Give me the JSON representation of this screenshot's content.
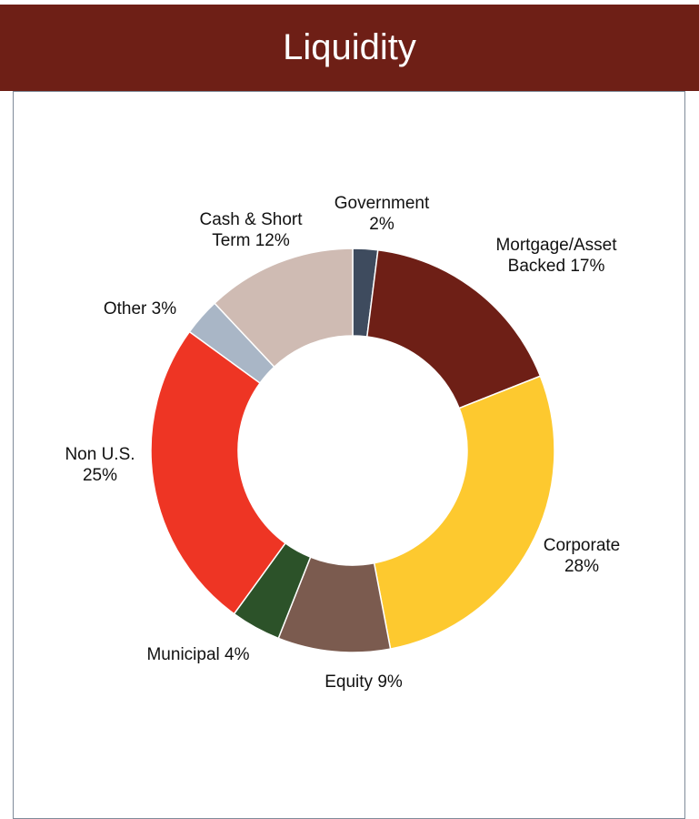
{
  "chart_data": {
    "type": "donut",
    "title": "Liquidity",
    "categories": [
      "Government",
      "Mortgage/Asset Backed",
      "Corporate",
      "Equity",
      "Municipal",
      "Non U.S.",
      "Other",
      "Cash & Short Term"
    ],
    "values": [
      2,
      17,
      28,
      9,
      4,
      25,
      3,
      12
    ],
    "value_labels": [
      "2%",
      "17%",
      "28%",
      "9%",
      "4%",
      "25%",
      "3%",
      "12%"
    ],
    "colors": [
      "#3e4b5e",
      "#6e1f16",
      "#fdc92f",
      "#7b5b4f",
      "#2c5229",
      "#ee3524",
      "#a9b6c6",
      "#cfbbb3"
    ]
  }
}
